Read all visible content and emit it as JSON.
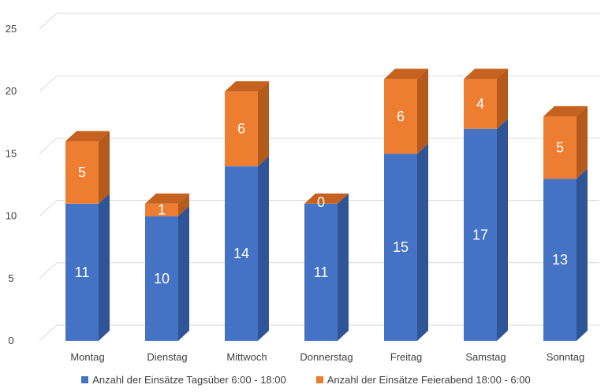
{
  "chart_data": {
    "type": "bar",
    "stacked": true,
    "style": "3d-column",
    "categories": [
      "Montag",
      "Dienstag",
      "Mittwoch",
      "Donnerstag",
      "Freitag",
      "Samstag",
      "Sonntag"
    ],
    "series": [
      {
        "name": "Anzahl der Einsätze Tagsüber 6:00 - 18:00",
        "color": "#4472C4",
        "values": [
          11,
          10,
          14,
          11,
          15,
          17,
          13
        ]
      },
      {
        "name": "Anzahl der Einsätze Feierabend 18:00 - 6:00",
        "color": "#ED7D31",
        "values": [
          5,
          1,
          6,
          0,
          6,
          4,
          5
        ]
      }
    ],
    "ylim": [
      0,
      25
    ],
    "yticks": [
      0,
      5,
      10,
      15,
      20,
      25
    ],
    "grid": true,
    "legend_position": "bottom",
    "data_labels": true
  }
}
